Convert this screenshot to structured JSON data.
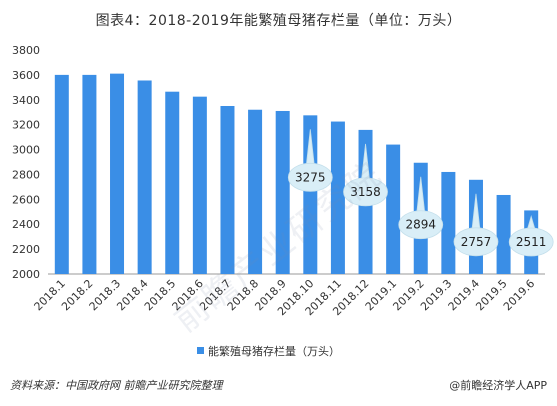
{
  "chart_data": {
    "type": "bar",
    "title": "图表4：2018-2019年能繁殖母猪存栏量（单位：万头）",
    "categories": [
      "2018.1",
      "2018.2",
      "2018.3",
      "2018.4",
      "2018.5",
      "2018.6",
      "2018.7",
      "2018.8",
      "2018.9",
      "2018.10",
      "2018.11",
      "2018.12",
      "2019.1",
      "2019.2",
      "2019.3",
      "2019.4",
      "2019.5",
      "2019.6"
    ],
    "series": [
      {
        "name": "能繁殖母猪存栏量（万头）",
        "values": [
          3600,
          3600,
          3610,
          3555,
          3465,
          3425,
          3350,
          3320,
          3310,
          3275,
          3225,
          3158,
          3040,
          2894,
          2820,
          2757,
          2635,
          2511
        ]
      }
    ],
    "callouts": [
      {
        "category": "2018.10",
        "label": "3275"
      },
      {
        "category": "2018.12",
        "label": "3158"
      },
      {
        "category": "2019.2",
        "label": "2894"
      },
      {
        "category": "2019.4",
        "label": "2757"
      },
      {
        "category": "2019.6",
        "label": "2511"
      }
    ],
    "yticks": [
      "2000",
      "2200",
      "2400",
      "2600",
      "2800",
      "3000",
      "3200",
      "3400",
      "3600",
      "3800"
    ],
    "ylim": [
      2000,
      3800
    ],
    "legend_position": "bottom-center",
    "grid": false,
    "colors": {
      "bar": "#3a8ee6",
      "callout_fill": "#d9eef7",
      "callout_stroke": "#c4dfeb",
      "axis": "#999999"
    }
  },
  "footer": {
    "source": "资料来源：中国政府网 前瞻产业研究院整理",
    "brand": "@前瞻经济学人APP"
  },
  "watermark": "前瞻产业研究院"
}
